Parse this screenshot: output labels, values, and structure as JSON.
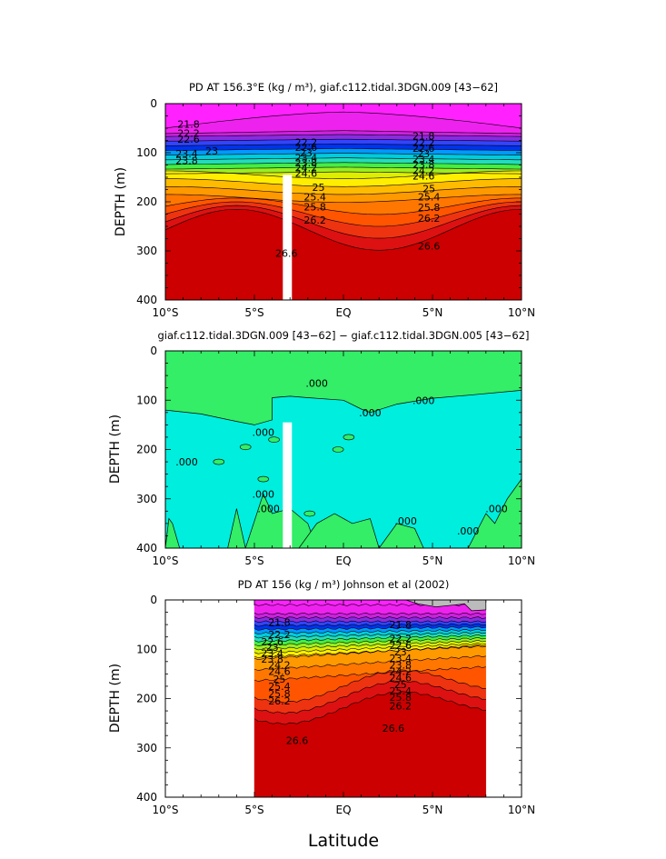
{
  "chart_data": [
    {
      "type": "heatmap",
      "title": "PD AT 156.3°E (kg / m³), giaf.c112.tidal.3DGN.009 [43−62]",
      "xlabel": "",
      "ylabel": "DEPTH (m)",
      "xlim": [
        -10,
        10
      ],
      "ylim": [
        400,
        0
      ],
      "xticks": [
        "10°S",
        "5°S",
        "EQ",
        "5°N",
        "10°N"
      ],
      "yticks": [
        "0",
        "100",
        "200",
        "300",
        "400"
      ],
      "contour_levels": [
        21.8,
        22.2,
        22.6,
        23,
        23.4,
        23.8,
        24.2,
        24.6,
        25,
        25.4,
        25.8,
        26.2,
        26.6
      ],
      "contour_labels": [
        "21.8",
        "22.2",
        "22.6",
        "23",
        "23.4",
        "23.8",
        "22.2",
        "22.6",
        "23",
        "23.4",
        "23.8",
        "24.2",
        "24.6",
        "25",
        "25.4",
        "25.8",
        "26.2",
        "21.8",
        "22.2",
        "22.6",
        "23",
        "23.4",
        "23.8",
        "24.2",
        "24.6",
        "25",
        "25.4",
        "25.8",
        "26.2",
        "26.6",
        "26.6"
      ],
      "masked_column": {
        "lat": -3.2,
        "depth_from": 145,
        "depth_to": 400
      }
    },
    {
      "type": "heatmap",
      "title": "giaf.c112.tidal.3DGN.009 [43−62] − giaf.c112.tidal.3DGN.005 [43−62]",
      "xlabel": "",
      "ylabel": "DEPTH (m)",
      "xlim": [
        -10,
        10
      ],
      "ylim": [
        400,
        0
      ],
      "xticks": [
        "10°S",
        "5°S",
        "EQ",
        "5°N",
        "10°N"
      ],
      "yticks": [
        "0",
        "100",
        "200",
        "300",
        "400"
      ],
      "contour_levels": [
        0.0
      ],
      "contour_labels": [
        ".000",
        ".000",
        ".000",
        ".000",
        ".000",
        ".000",
        ".000",
        ".000",
        ".000",
        ".000"
      ],
      "masked_column": {
        "lat": -3.2,
        "depth_from": 145,
        "depth_to": 400
      }
    },
    {
      "type": "heatmap",
      "title": "PD AT 156 (kg / m³) Johnson et al (2002)",
      "xlabel": "Latitude",
      "ylabel": "DEPTH (m)",
      "xlim": [
        -10,
        10
      ],
      "ylim": [
        400,
        0
      ],
      "xticks": [
        "10°S",
        "5°S",
        "EQ",
        "5°N",
        "10°N"
      ],
      "yticks": [
        "0",
        "100",
        "200",
        "300",
        "400"
      ],
      "data_extent_lat": [
        -5,
        8
      ],
      "contour_levels": [
        21.8,
        22.2,
        22.6,
        23,
        23.4,
        23.8,
        24.2,
        24.6,
        25,
        25.4,
        25.8,
        26.2,
        26.6
      ],
      "contour_labels": [
        "21.8",
        "22.2",
        "22.6",
        "23",
        "23.4",
        "23.8",
        "24.2",
        "24.6",
        "25",
        "25.4",
        "25.8",
        "26.2",
        "26.6",
        "21.8",
        "22.2",
        "22.6",
        "23",
        "23.4",
        "23.8",
        "24.2",
        "24.6",
        "25",
        "25.4",
        "25.8",
        "26.2",
        "26.6"
      ]
    }
  ],
  "colors": {
    "density": [
      "#ff22ff",
      "#ee22ee",
      "#cc22dd",
      "#8a2be2",
      "#3344ff",
      "#0033ee",
      "#0099ff",
      "#00ccdd",
      "#22ddbb",
      "#44ee44",
      "#99ee22",
      "#ddee00",
      "#ffee00",
      "#ffbb00",
      "#ff9900",
      "#ff7700",
      "#ff5500",
      "#ee3311",
      "#dd1111",
      "#cc0000"
    ],
    "diff_positive": "#33ee66",
    "diff_negative": "#00eedd",
    "missing": "#bbbbbb",
    "mask": "#ffffff"
  }
}
